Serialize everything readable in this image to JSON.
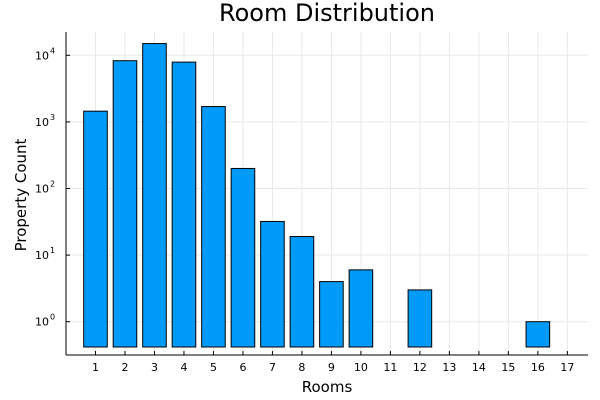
{
  "chart_data": {
    "type": "bar",
    "title": "Room Distribution",
    "xlabel": "Rooms",
    "ylabel": "Property Count",
    "y_scale": "log10",
    "grid": true,
    "legend": "none",
    "bar_color": "#009af9",
    "x": [
      1,
      2,
      3,
      4,
      5,
      6,
      7,
      8,
      9,
      10,
      12,
      16
    ],
    "values": [
      1450,
      8300,
      15000,
      7900,
      1700,
      200,
      32,
      19,
      4,
      6,
      3,
      1
    ],
    "x_ticks": [
      1,
      2,
      3,
      4,
      5,
      6,
      7,
      8,
      9,
      10,
      11,
      12,
      13,
      14,
      15,
      16,
      17
    ],
    "y_ticks": [
      {
        "value": 1,
        "base": "10",
        "exp": "0"
      },
      {
        "value": 10,
        "base": "10",
        "exp": "1"
      },
      {
        "value": 100,
        "base": "10",
        "exp": "2"
      },
      {
        "value": 1000,
        "base": "10",
        "exp": "3"
      },
      {
        "value": 10000,
        "base": "10",
        "exp": "4"
      }
    ]
  }
}
